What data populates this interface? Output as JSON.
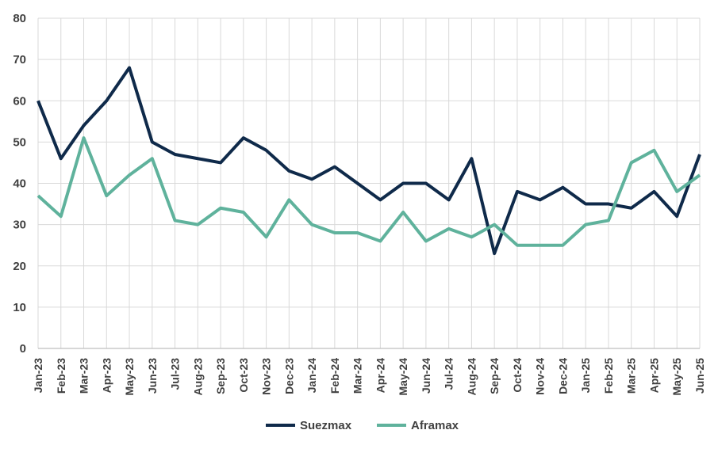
{
  "chart_data": {
    "type": "line",
    "title": "",
    "xlabel": "",
    "ylabel": "",
    "ylim": [
      0,
      80
    ],
    "yticks": [
      "0",
      "10",
      "20",
      "30",
      "40",
      "50",
      "60",
      "70",
      "80"
    ],
    "grid": true,
    "legend_position": "bottom",
    "categories": [
      "Jan-23",
      "Feb-23",
      "Mar-23",
      "Apr-23",
      "May-23",
      "Jun-23",
      "Jul-23",
      "Aug-23",
      "Sep-23",
      "Oct-23",
      "Nov-23",
      "Dec-23",
      "Jan-24",
      "Feb-24",
      "Mar-24",
      "Apr-24",
      "May-24",
      "Jun-24",
      "Jul-24",
      "Aug-24",
      "Sep-24",
      "Oct-24",
      "Nov-24",
      "Dec-24",
      "Jan-25",
      "Feb-25",
      "Mar-25",
      "Apr-25",
      "May-25",
      "Jun-25"
    ],
    "series": [
      {
        "name": "Suezmax",
        "color": "#0f2a4a",
        "values": [
          60,
          46,
          54,
          60,
          68,
          50,
          47,
          46,
          45,
          51,
          48,
          43,
          41,
          44,
          40,
          36,
          40,
          40,
          36,
          46,
          23,
          38,
          36,
          39,
          35,
          35,
          34,
          38,
          32,
          47
        ]
      },
      {
        "name": "Aframax",
        "color": "#5fb29c",
        "values": [
          37,
          32,
          51,
          37,
          42,
          46,
          31,
          30,
          34,
          33,
          27,
          36,
          30,
          28,
          28,
          26,
          33,
          26,
          29,
          27,
          30,
          25,
          25,
          25,
          30,
          31,
          45,
          48,
          38,
          42
        ]
      }
    ]
  }
}
